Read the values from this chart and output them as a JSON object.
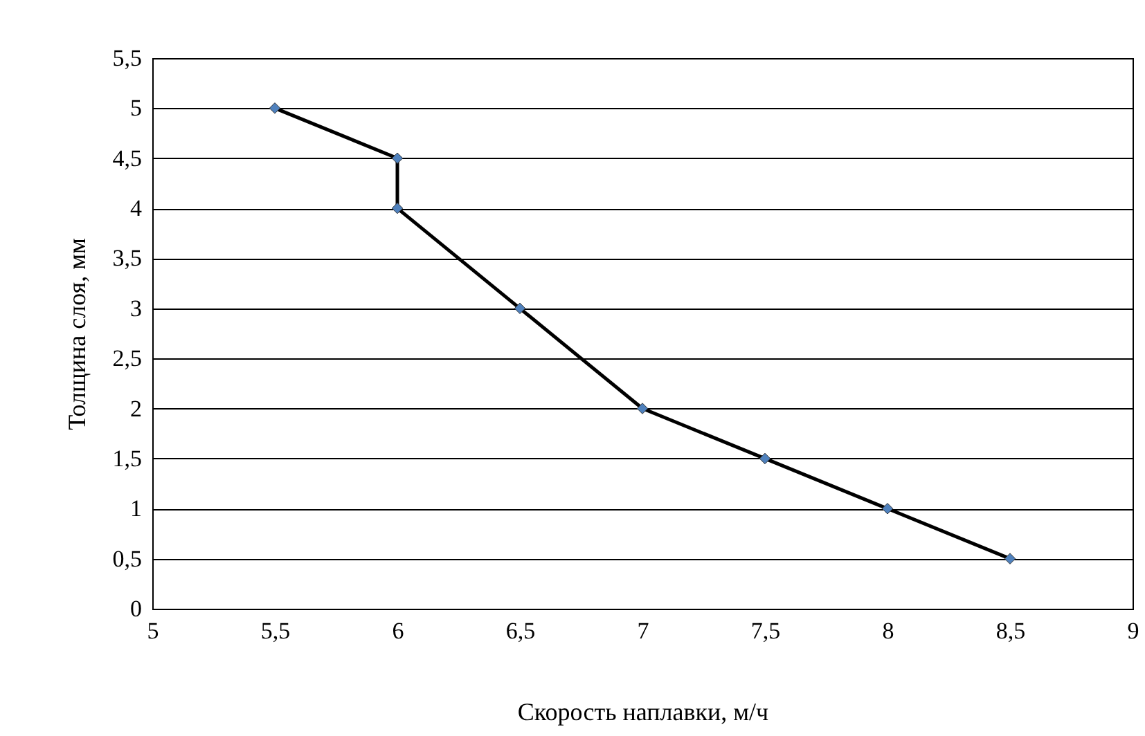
{
  "chart_data": {
    "type": "line",
    "xlabel": "Скорость наплавки, м/ч",
    "ylabel": "Толщина слоя, мм",
    "x": [
      5.5,
      6,
      6,
      6.5,
      7,
      7.5,
      8,
      8.5
    ],
    "series": [
      {
        "color": "#4f81bd",
        "values": [
          5,
          4.5,
          4,
          3,
          2,
          1.5,
          1,
          0.5
        ]
      }
    ],
    "xlim": [
      5,
      9
    ],
    "ylim": [
      0,
      5.5
    ],
    "xticks": [
      5,
      {
        "value": 5.5,
        "label": "5,5"
      },
      6,
      {
        "value": 6.5,
        "label": "6,5"
      },
      7,
      {
        "value": 7.5,
        "label": "7,5"
      },
      8,
      {
        "value": 8.5,
        "label": "8,5"
      },
      9
    ],
    "yticks": [
      0,
      {
        "value": 0.5,
        "label": "0,5"
      },
      1,
      {
        "value": 1.5,
        "label": "1,5"
      },
      2,
      {
        "value": 2.5,
        "label": "2,5"
      },
      3,
      {
        "value": 3.5,
        "label": "3,5"
      },
      4,
      {
        "value": 4.5,
        "label": "4,5"
      },
      5,
      {
        "value": 5.5,
        "label": "5,5"
      }
    ],
    "grid": "y",
    "marker": "diamond",
    "line_style": "solid"
  }
}
